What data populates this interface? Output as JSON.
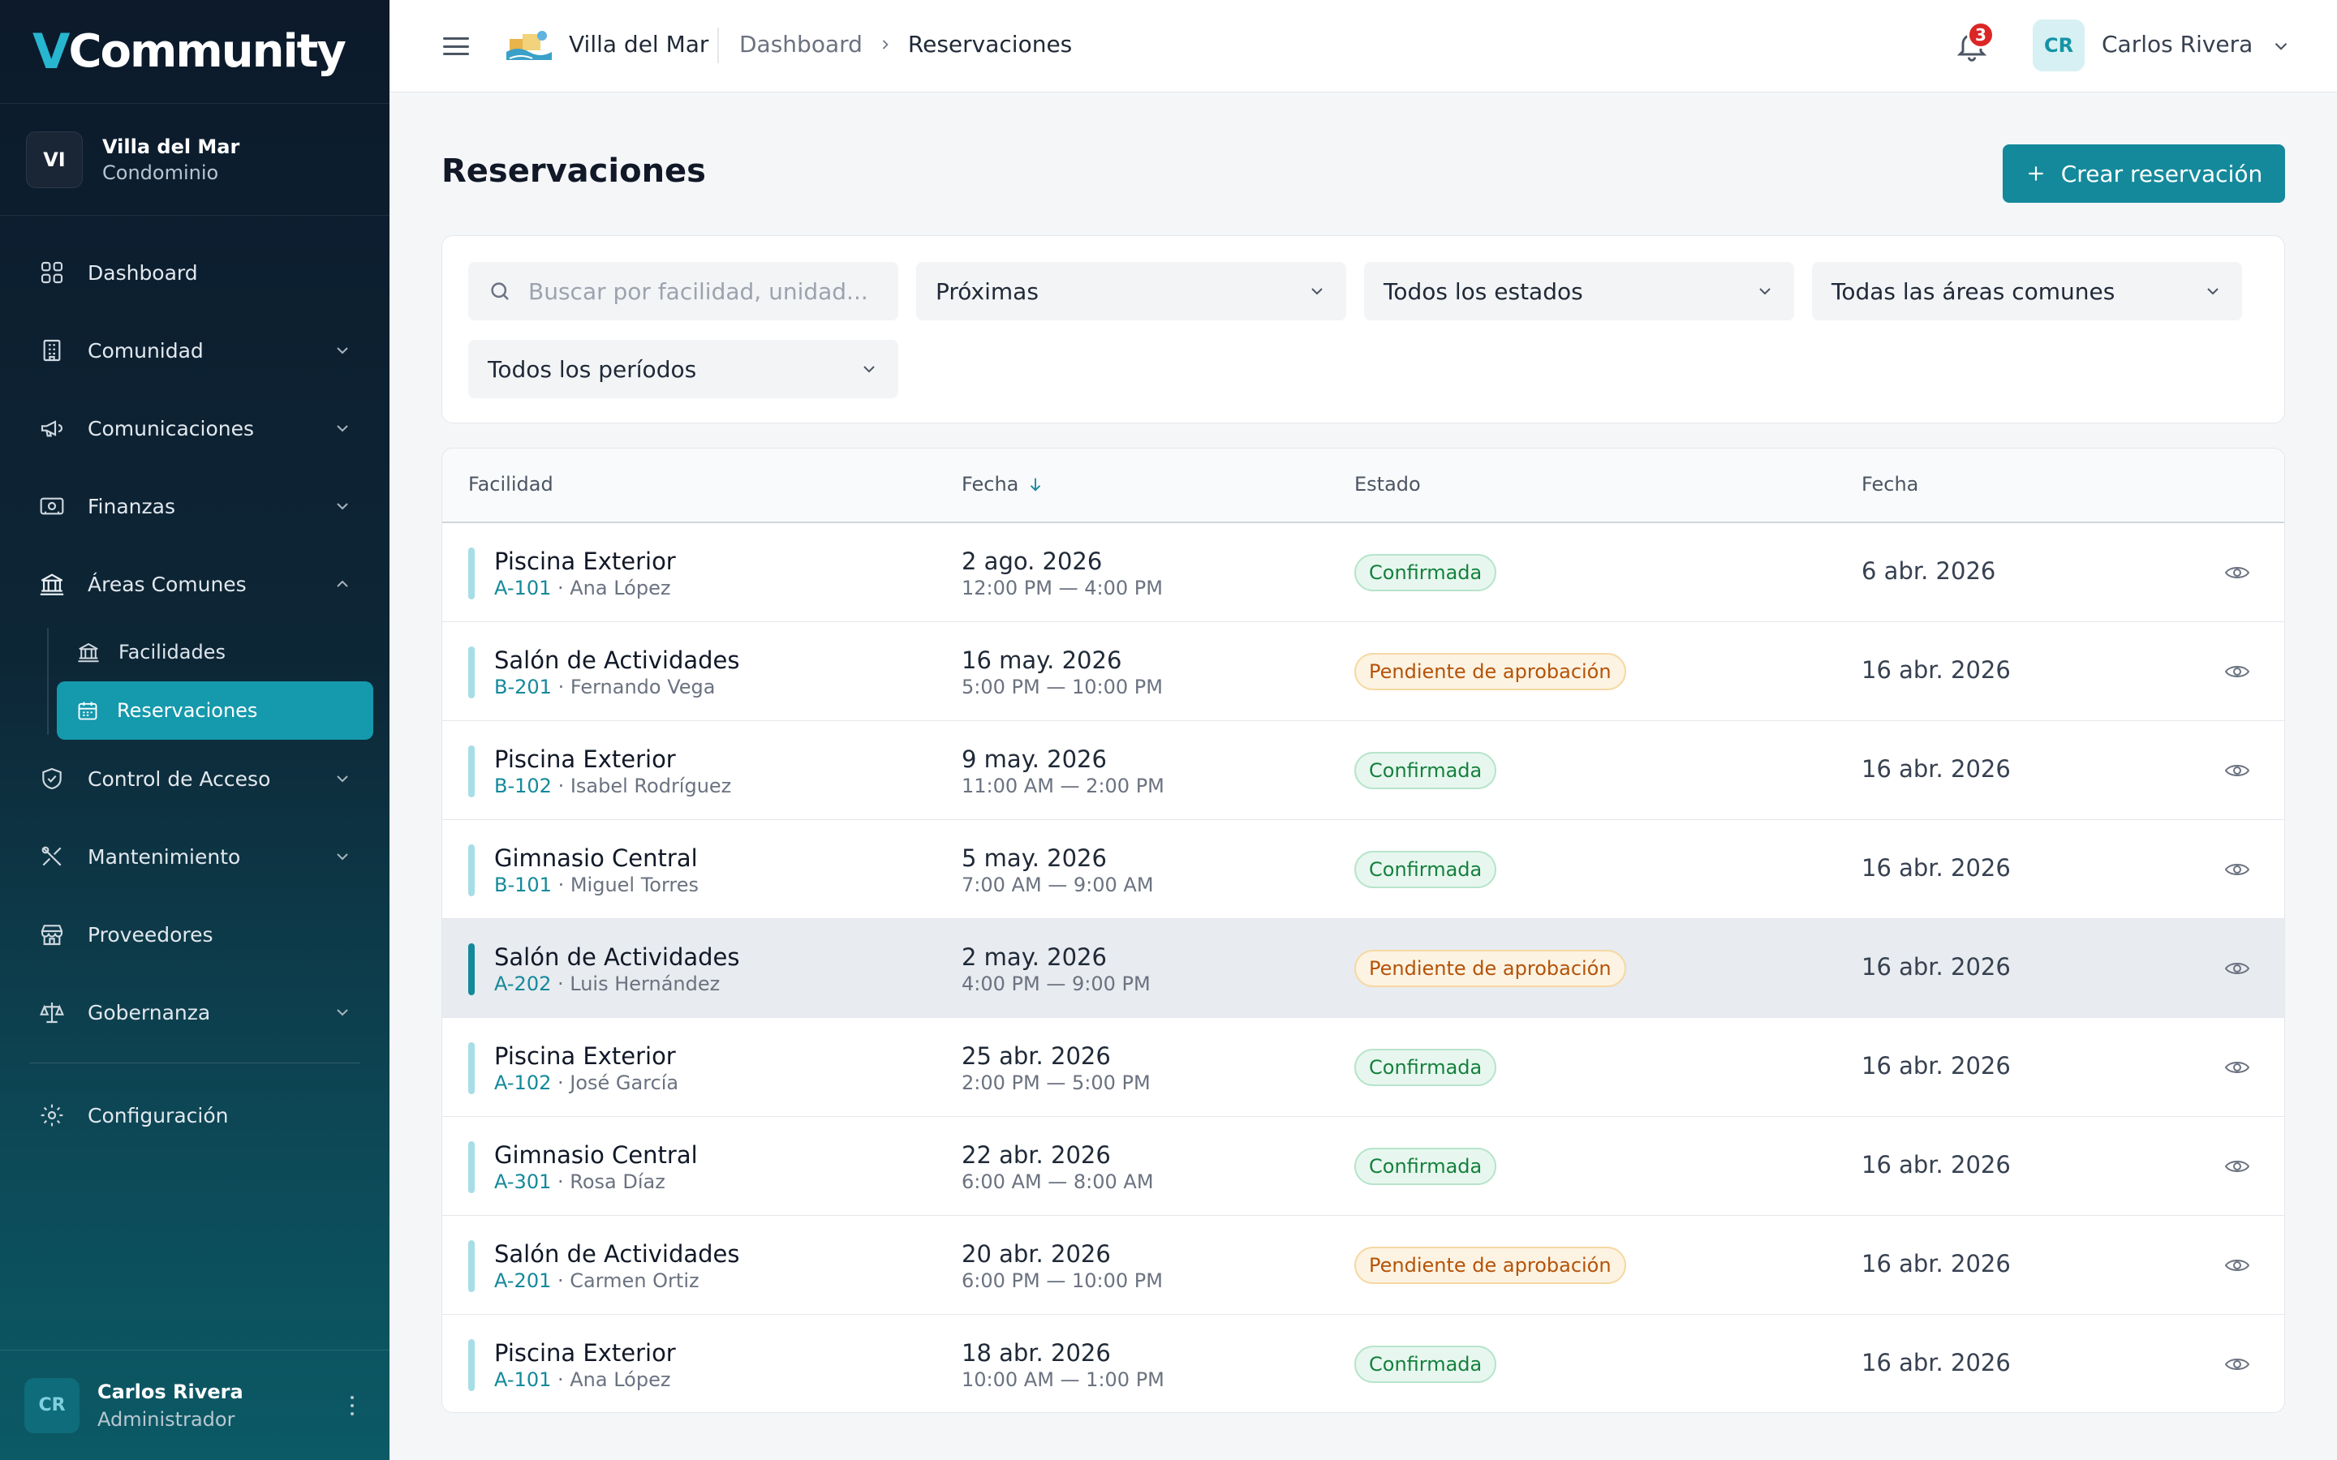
{
  "sidebar": {
    "logo_v": "V",
    "logo_rest": "Community",
    "community": {
      "initials": "VI",
      "name": "Villa del Mar",
      "type": "Condominio"
    },
    "items": [
      {
        "label": "Dashboard",
        "icon": "grid-icon"
      },
      {
        "label": "Comunidad",
        "icon": "building-icon"
      },
      {
        "label": "Comunicaciones",
        "icon": "megaphone-icon"
      },
      {
        "label": "Finanzas",
        "icon": "money-icon"
      },
      {
        "label": "Áreas Comunes",
        "icon": "landmark-icon"
      },
      {
        "label": "Control de Acceso",
        "icon": "shield-icon"
      },
      {
        "label": "Mantenimiento",
        "icon": "tools-icon"
      },
      {
        "label": "Proveedores",
        "icon": "store-icon"
      },
      {
        "label": "Gobernanza",
        "icon": "scale-icon"
      },
      {
        "label": "Configuración",
        "icon": "gear-icon"
      }
    ],
    "sub_items": [
      {
        "label": "Facilidades",
        "icon": "landmark-icon"
      },
      {
        "label": "Reservaciones",
        "icon": "calendar-icon"
      }
    ],
    "user": {
      "initials": "CR",
      "name": "Carlos Rivera",
      "role": "Administrador"
    }
  },
  "topbar": {
    "community": "Villa del Mar",
    "breadcrumb": [
      "Dashboard",
      "Reservaciones"
    ],
    "notifications": "3",
    "user_initials": "CR",
    "user_name": "Carlos Rivera"
  },
  "main": {
    "title": "Reservaciones",
    "create_label": "Crear reservación",
    "filters": {
      "search_placeholder": "Buscar por facilidad, unidad...",
      "when": "Próximas",
      "status": "Todos los estados",
      "area": "Todas las áreas comunes",
      "period": "Todos los períodos"
    },
    "columns": [
      "Facilidad",
      "Fecha",
      "Estado",
      "Fecha"
    ],
    "rows": [
      {
        "facility": "Piscina Exterior",
        "unit": "A-101",
        "resident": "· Ana López",
        "date": "2 ago. 2026",
        "time": "12:00 PM — 4:00 PM",
        "status": "Confirmada",
        "created": "6 abr. 2026"
      },
      {
        "facility": "Salón de Actividades",
        "unit": "B-201",
        "resident": "· Fernando Vega",
        "date": "16 may. 2026",
        "time": "5:00 PM — 10:00 PM",
        "status": "Pendiente de aprobación",
        "created": "16 abr. 2026"
      },
      {
        "facility": "Piscina Exterior",
        "unit": "B-102",
        "resident": "· Isabel Rodríguez",
        "date": "9 may. 2026",
        "time": "11:00 AM — 2:00 PM",
        "status": "Confirmada",
        "created": "16 abr. 2026"
      },
      {
        "facility": "Gimnasio Central",
        "unit": "B-101",
        "resident": "· Miguel Torres",
        "date": "5 may. 2026",
        "time": "7:00 AM — 9:00 AM",
        "status": "Confirmada",
        "created": "16 abr. 2026"
      },
      {
        "facility": "Salón de Actividades",
        "unit": "A-202",
        "resident": "· Luis Hernández",
        "date": "2 may. 2026",
        "time": "4:00 PM — 9:00 PM",
        "status": "Pendiente de aprobación",
        "created": "16 abr. 2026"
      },
      {
        "facility": "Piscina Exterior",
        "unit": "A-102",
        "resident": "· José García",
        "date": "25 abr. 2026",
        "time": "2:00 PM — 5:00 PM",
        "status": "Confirmada",
        "created": "16 abr. 2026"
      },
      {
        "facility": "Gimnasio Central",
        "unit": "A-301",
        "resident": "· Rosa Díaz",
        "date": "22 abr. 2026",
        "time": "6:00 AM — 8:00 AM",
        "status": "Confirmada",
        "created": "16 abr. 2026"
      },
      {
        "facility": "Salón de Actividades",
        "unit": "A-201",
        "resident": "· Carmen Ortiz",
        "date": "20 abr. 2026",
        "time": "6:00 PM — 10:00 PM",
        "status": "Pendiente de aprobación",
        "created": "16 abr. 2026"
      },
      {
        "facility": "Piscina Exterior",
        "unit": "A-101",
        "resident": "· Ana López",
        "date": "18 abr. 2026",
        "time": "10:00 AM — 1:00 PM",
        "status": "Confirmada",
        "created": "16 abr. 2026"
      }
    ]
  },
  "colors": {
    "accent": "#14899b",
    "confirmed": "#15803d",
    "pending": "#b45309",
    "badge": "#dc2626"
  }
}
